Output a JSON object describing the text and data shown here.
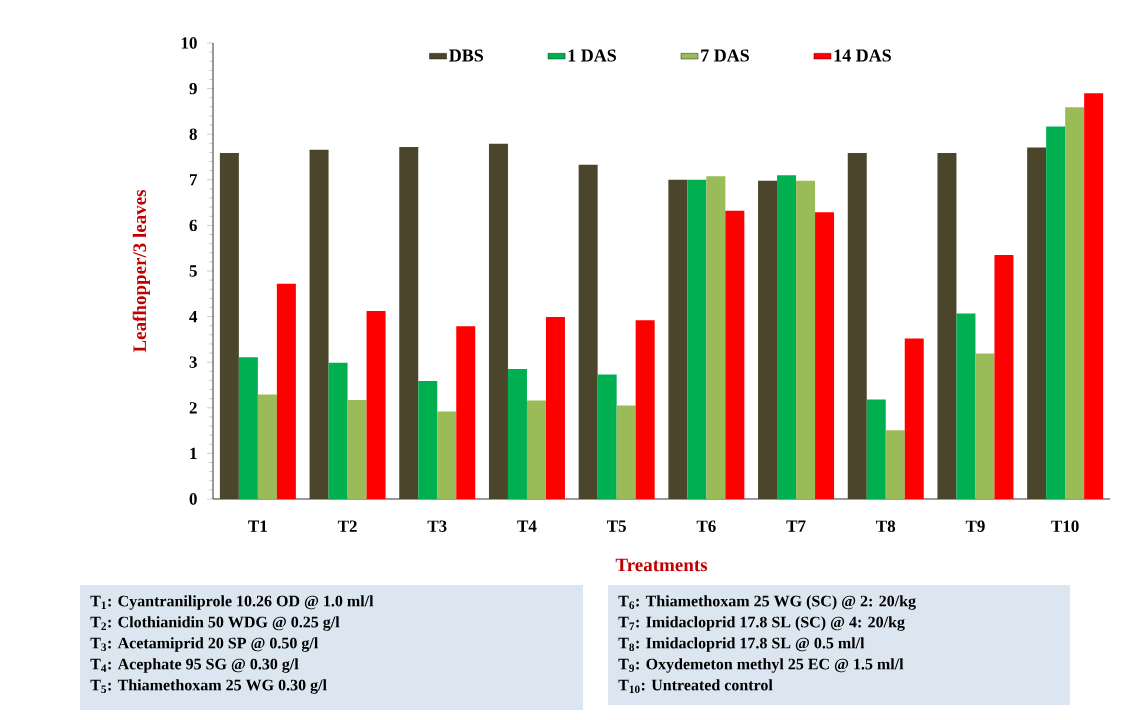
{
  "chart_data": {
    "type": "bar",
    "xlabel": "Treatments",
    "ylabel": "Leafhopper/3 leaves",
    "categories": [
      "T1",
      "T2",
      "T3",
      "T4",
      "T5",
      "T6",
      "T7",
      "T8",
      "T9",
      "T10"
    ],
    "series": [
      {
        "name": "DBS",
        "color": "#4b452b",
        "values": [
          7.59,
          7.66,
          7.72,
          7.79,
          7.33,
          7.0,
          6.98,
          7.59,
          7.59,
          7.71
        ]
      },
      {
        "name": "1 DAS",
        "color": "#00b050",
        "values": [
          3.11,
          2.99,
          2.59,
          2.85,
          2.73,
          7.0,
          7.1,
          2.18,
          4.07,
          8.17
        ]
      },
      {
        "name": "7 DAS",
        "color": "#9bbb59",
        "values": [
          2.29,
          2.17,
          1.92,
          2.16,
          2.05,
          7.08,
          6.98,
          1.51,
          3.19,
          8.59
        ]
      },
      {
        "name": "14 DAS",
        "color": "#ff0000",
        "values": [
          4.72,
          4.12,
          3.79,
          3.99,
          3.92,
          6.32,
          6.29,
          3.52,
          5.35,
          8.9
        ]
      }
    ],
    "ylim": [
      0,
      10
    ],
    "yticks": [
      0,
      1,
      2,
      3,
      4,
      5,
      6,
      7,
      8,
      9,
      10
    ],
    "legend": "top",
    "annotations": [
      "T$_{1}$: Cyantraniliprole 10.26 OD @ 1.0 ml/l",
      "T$_{2}$: Clothianidin 50 WDG @ 0.25 g/l",
      "T$_{3}$: Acetamiprid 20 SP @ 0.50 g/l",
      "T$_{4}$: Acephate 95 SG @ 0.30 g/l",
      "T$_{5}$: Thiamethoxam 25 WG 0.30 g/l",
      "T$_{6}$: Thiamethoxam 25 WG (SC) @ 2: 20/kg",
      "T$_{7}$: Imidacloprid 17.8 SL (SC) @ 4: 20/kg",
      "T$_{8}$: Imidacloprid 17.8 SL @ 0.5 ml/l",
      "T$_{9}$: Oxydemeton methyl 25 EC @ 1.5 ml/l",
      "T$_{10}$: Untreated control"
    ]
  }
}
